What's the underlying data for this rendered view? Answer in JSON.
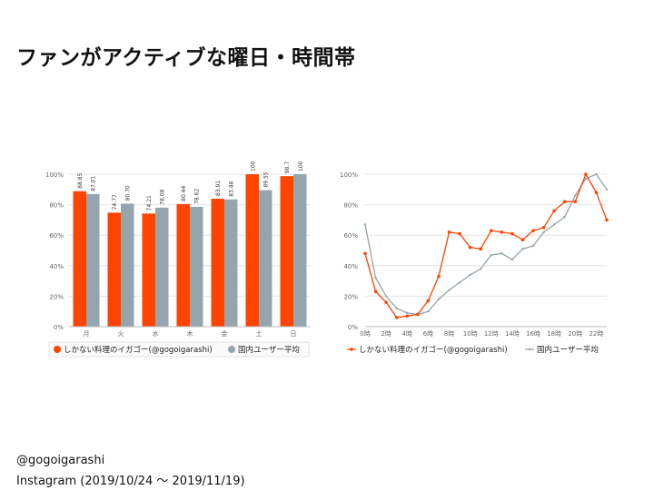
{
  "title": "ファンがアクティブな曜日・時間帯",
  "footer": {
    "handle": "@gogoigarashi",
    "period": "Instagram (2019/10/24 〜 2019/11/19)"
  },
  "colors": {
    "account": "#ff4400",
    "average": "#95a5ad",
    "grid": "#e4e4e4",
    "axis": "#666666"
  },
  "chart_data": [
    {
      "type": "bar",
      "categories": [
        "月",
        "火",
        "水",
        "木",
        "金",
        "土",
        "日"
      ],
      "series": [
        {
          "name": "しかない料理のイガゴー(@gogoigarashi)",
          "values": [
            88.85,
            74.77,
            74.21,
            80.44,
            83.91,
            100,
            98.72
          ]
        },
        {
          "name": "国内ユーザー平均",
          "values": [
            87.01,
            80.7,
            78.08,
            78.62,
            83.48,
            89.55,
            100
          ]
        }
      ],
      "data_labels": [
        [
          "88.85",
          "74.77",
          "74.21",
          "80.44",
          "83.91",
          "100",
          "98.72"
        ],
        [
          "87.01",
          "80.70",
          "78.08",
          "78.62",
          "83.48",
          "89.55",
          "100"
        ]
      ],
      "yticks": [
        "0%",
        "20%",
        "40%",
        "60%",
        "80%",
        "100%"
      ],
      "ylim": [
        0,
        100
      ],
      "legend": "bottom"
    },
    {
      "type": "line",
      "x": [
        0,
        1,
        2,
        3,
        4,
        5,
        6,
        7,
        8,
        9,
        10,
        11,
        12,
        13,
        14,
        15,
        16,
        17,
        18,
        19,
        20,
        21,
        22,
        23
      ],
      "xticks": [
        "0時",
        "2時",
        "4時",
        "6時",
        "8時",
        "10時",
        "12時",
        "14時",
        "16時",
        "18時",
        "20時",
        "22時"
      ],
      "series": [
        {
          "name": "しかない料理のイガゴー(@gogoigarashi)",
          "values": [
            48,
            23,
            16,
            6,
            7,
            8,
            17,
            33,
            62,
            61,
            52,
            51,
            63,
            62,
            61,
            57,
            63,
            65,
            76,
            82,
            82,
            100,
            88,
            70
          ]
        },
        {
          "name": "国内ユーザー平均",
          "values": [
            67,
            32,
            20,
            12,
            9,
            8,
            10,
            18,
            24,
            29,
            34,
            38,
            47,
            48,
            44,
            51,
            53,
            62,
            67,
            72,
            86,
            97,
            100,
            90
          ]
        }
      ],
      "yticks": [
        "0%",
        "20%",
        "40%",
        "60%",
        "80%",
        "100%"
      ],
      "ylim": [
        0,
        100
      ],
      "legend": "bottom"
    }
  ]
}
